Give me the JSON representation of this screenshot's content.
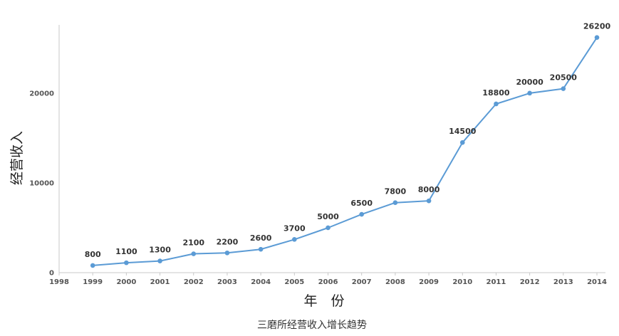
{
  "chart_data": {
    "type": "line",
    "title": "",
    "caption": "三磨所经营收入增长趋势",
    "xlabel": "年　份",
    "ylabel": "经营收入",
    "x": [
      1999,
      2000,
      2001,
      2002,
      2003,
      2004,
      2005,
      2006,
      2007,
      2008,
      2009,
      2010,
      2011,
      2012,
      2013,
      2014
    ],
    "x_ticks": [
      1998,
      1999,
      2000,
      2001,
      2002,
      2003,
      2004,
      2005,
      2006,
      2007,
      2008,
      2009,
      2010,
      2011,
      2012,
      2013,
      2014
    ],
    "y_ticks": [
      0,
      10000,
      20000
    ],
    "series": [
      {
        "values": [
          800,
          1100,
          1300,
          2100,
          2200,
          2600,
          3700,
          5000,
          6500,
          7800,
          8000,
          14500,
          18800,
          20000,
          20500,
          26200
        ],
        "labels": [
          "800",
          "1100",
          "1300",
          "2100",
          "2200",
          "2600",
          "3700",
          "5000",
          "6500",
          "7800",
          "8000",
          "14500",
          "18800",
          "20000",
          "20500",
          "26200"
        ]
      }
    ],
    "xlim": [
      1998,
      2014
    ],
    "ylim": [
      0,
      28000
    ],
    "grid": false,
    "line_color": "#5b9bd5",
    "axis_color": "#c8c8c8"
  }
}
